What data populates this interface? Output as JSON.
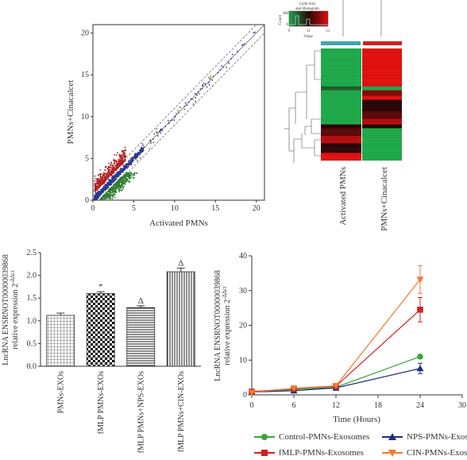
{
  "colors": {
    "scatter_up": "#b22222",
    "scatter_mid": "#2c3a8c",
    "scatter_down": "#2e7d2e",
    "heat_low": "#1ea84a",
    "heat_mid": "#2a0505",
    "heat_high": "#e01010",
    "heat_bar_left": "#3fa7a7",
    "heat_bar_right": "#cc2222",
    "control": "#3aa63a",
    "fmlp": "#d42020",
    "nps": "#1f2f7a",
    "cin": "#f07b30"
  },
  "panel_a": {
    "xlabel": "Activated PMNs",
    "ylabel": "PMNs+Cinacalcet",
    "x_ticks": [
      "0",
      "5",
      "10",
      "15",
      "20"
    ],
    "y_ticks": [
      "0",
      "5",
      "10",
      "15",
      "20"
    ]
  },
  "panel_b": {
    "color_key_title_line1": "Color Key",
    "color_key_title_line2": "and Histogram",
    "color_key_ylabel": "Count",
    "color_key_count_max": "300",
    "color_key_count_min": "0",
    "color_key_ticks": [
      "9",
      "11",
      "13"
    ],
    "color_key_xlabel": "Value",
    "col_labels": [
      "Activated PMNs",
      "PMNs+Cinacalcet"
    ]
  },
  "panel_c": {
    "ylabel_line1": "LncRNA ENSRNOT00000039868",
    "ylabel_line2": "relative expression 2",
    "ylabel_sup": "-ΔΔct",
    "y_ticks": [
      "0.0",
      "0.5",
      "1.0",
      "1.5",
      "2.0",
      "2.5"
    ],
    "sig_labels": [
      "",
      "*",
      "Δ",
      "Δ"
    ]
  },
  "panel_d": {
    "xlabel": "Time (Hours)",
    "ylabel_line1": "LncRNA ENSRNOT00000039868",
    "ylabel_line2": "relative expression 2",
    "ylabel_sup": "-ΔΔct",
    "x_ticks": [
      "0",
      "6",
      "12",
      "18",
      "24",
      "30"
    ],
    "y_ticks": [
      "0",
      "10",
      "20",
      "30",
      "40"
    ],
    "legend": [
      "Control-PMNs-Exosomes",
      "NPS-PMNs-Exosomes",
      "fMLP-PMNs-Exosomes",
      "CIN-PMNs-Exosomes"
    ]
  },
  "chart_data": [
    {
      "type": "scatter",
      "xlabel": "Activated PMNs",
      "ylabel": "PMNs+Cinacalcet",
      "xlim": [
        0,
        21
      ],
      "ylim": [
        0,
        21
      ],
      "grid": false,
      "reference_lines": [
        {
          "slope": 1,
          "intercept": 0
        },
        {
          "slope": 1,
          "intercept": 1
        },
        {
          "slope": 1,
          "intercept": -1
        }
      ],
      "series": [
        {
          "values": "points above upper fold line, concentrated at x 0-4, y 1-6"
        },
        {
          "values": "points along diagonal, x 0-20"
        },
        {
          "values": "points below lower fold line, concentrated at x 1-5, y 0-3"
        }
      ]
    },
    {
      "type": "heatmap",
      "columns": [
        "Activated PMNs",
        "PMNs+Cinacalcet"
      ],
      "color_scale": {
        "min": 9,
        "max": 13
      },
      "row_blocks": [
        {
          "rows": 20,
          "values": [
            9,
            13
          ]
        },
        {
          "rows": 2,
          "values": [
            10,
            9
          ]
        },
        {
          "rows": 3,
          "values": [
            9,
            12
          ]
        },
        {
          "rows": 2,
          "values": [
            9,
            13
          ]
        },
        {
          "rows": 6,
          "values": [
            9,
            11
          ]
        },
        {
          "rows": 4,
          "values": [
            9,
            11.5
          ]
        },
        {
          "rows": 3,
          "values": [
            9,
            12.5
          ]
        },
        {
          "rows": 2,
          "values": [
            11,
            11
          ]
        },
        {
          "rows": 4,
          "values": [
            11.5,
            9
          ]
        },
        {
          "rows": 4,
          "values": [
            12.5,
            9
          ]
        },
        {
          "rows": 5,
          "values": [
            11,
            9
          ]
        },
        {
          "rows": 4,
          "values": [
            13,
            9
          ]
        }
      ]
    },
    {
      "type": "bar",
      "categories": [
        "PMNs-EXOs",
        "fMLP PMNs-EXOs",
        "fMLP PMNs+NPS-EXOs",
        "fMLP PMNs+CIN-EXOs"
      ],
      "values": [
        1.12,
        1.6,
        1.29,
        2.08
      ],
      "errors": [
        0.05,
        0.04,
        0.04,
        0.08
      ],
      "ylabel": "LncRNA ENSRNOT00000039868 relative expression 2-ΔΔct",
      "ylim": [
        0,
        2.5
      ]
    },
    {
      "type": "line",
      "x": [
        0,
        6,
        12,
        24
      ],
      "xlabel": "Time (Hours)",
      "ylabel": "LncRNA ENSRNOT00000039868 relative expression 2-ΔΔct",
      "xlim": [
        0,
        30
      ],
      "ylim": [
        0,
        40
      ],
      "legend_position": "bottom",
      "series": [
        {
          "name": "Control-PMNs-Exosomes",
          "values": [
            1.0,
            1.5,
            2.2,
            11.0
          ],
          "errors": [
            0.2,
            0.2,
            0.3,
            0.5
          ]
        },
        {
          "name": "NPS-PMNs-Exosomes",
          "values": [
            0.8,
            1.2,
            2.0,
            7.6
          ],
          "errors": [
            0.2,
            0.2,
            0.3,
            1.5
          ]
        },
        {
          "name": "fMLP-PMNs-Exosomes",
          "values": [
            0.9,
            1.8,
            2.5,
            24.5
          ],
          "errors": [
            0.2,
            0.2,
            0.3,
            3.5
          ]
        },
        {
          "name": "CIN-PMNs-Exosomes",
          "values": [
            0.7,
            1.9,
            2.6,
            33.2
          ],
          "errors": [
            0.2,
            0.2,
            0.3,
            4.0
          ]
        }
      ]
    }
  ]
}
